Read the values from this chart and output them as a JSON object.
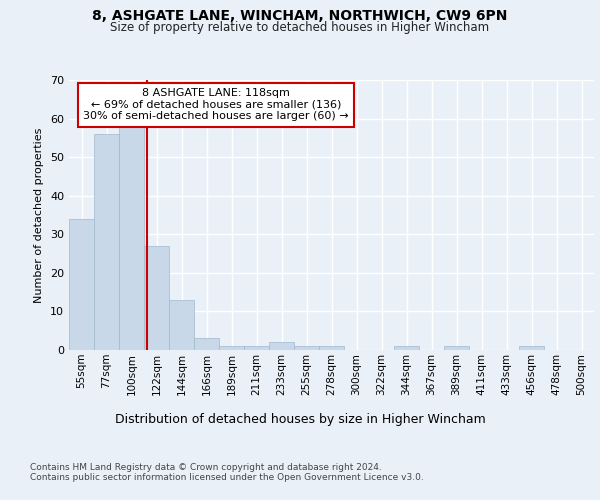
{
  "title1": "8, ASHGATE LANE, WINCHAM, NORTHWICH, CW9 6PN",
  "title2": "Size of property relative to detached houses in Higher Wincham",
  "xlabel": "Distribution of detached houses by size in Higher Wincham",
  "ylabel": "Number of detached properties",
  "bin_labels": [
    "55sqm",
    "77sqm",
    "100sqm",
    "122sqm",
    "144sqm",
    "166sqm",
    "189sqm",
    "211sqm",
    "233sqm",
    "255sqm",
    "278sqm",
    "300sqm",
    "322sqm",
    "344sqm",
    "367sqm",
    "389sqm",
    "411sqm",
    "433sqm",
    "456sqm",
    "478sqm",
    "500sqm"
  ],
  "bar_values": [
    34,
    56,
    59,
    27,
    13,
    3,
    1,
    1,
    2,
    1,
    1,
    0,
    0,
    1,
    0,
    1,
    0,
    0,
    1,
    0,
    0
  ],
  "bar_color": "#c8d8e8",
  "bar_edge_color": "#a0b8cc",
  "vline_x": 2.636,
  "vline_color": "#cc0000",
  "annotation_text": "8 ASHGATE LANE: 118sqm\n← 69% of detached houses are smaller (136)\n30% of semi-detached houses are larger (60) →",
  "annotation_box_color": "#ffffff",
  "annotation_box_edge": "#cc0000",
  "ylim": [
    0,
    70
  ],
  "yticks": [
    0,
    10,
    20,
    30,
    40,
    50,
    60,
    70
  ],
  "bg_color": "#eaf0f8",
  "plot_bg_color": "#eaf0f8",
  "grid_color": "#ffffff",
  "footer1": "Contains HM Land Registry data © Crown copyright and database right 2024.",
  "footer2": "Contains public sector information licensed under the Open Government Licence v3.0."
}
